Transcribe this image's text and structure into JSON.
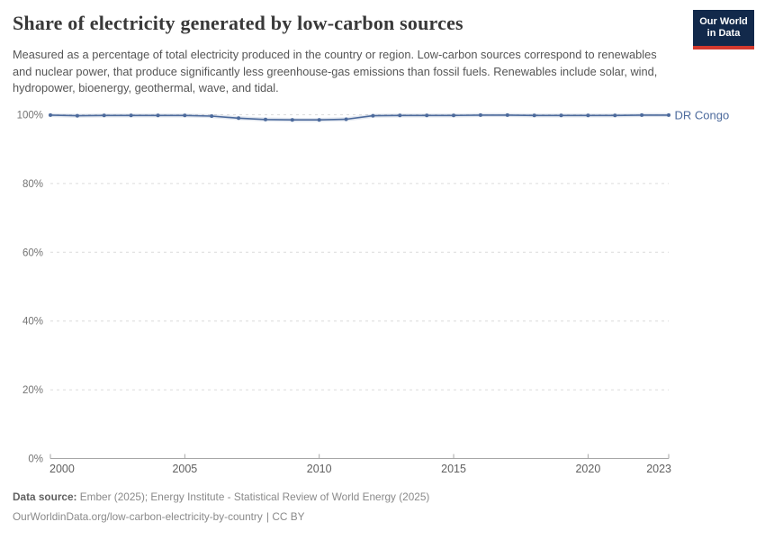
{
  "header": {
    "title": "Share of electricity generated by low-carbon sources",
    "subtitle": "Measured as a percentage of total electricity produced in the country or region. Low-carbon sources correspond to renewables and nuclear power, that produce significantly less greenhouse-gas emissions than fossil fuels. Renewables include solar, wind, hydropower, bioenergy, geothermal, wave, and tidal.",
    "logo_line1": "Our World",
    "logo_line2": "in Data"
  },
  "colors": {
    "series_blue": "#4c6a9c",
    "gridline": "#dcdcdc",
    "axis": "#a6a6a6",
    "y_tick_label": "#747474",
    "x_tick_label": "#606060",
    "logo_navy": "#12294b",
    "logo_red": "#d3392e",
    "title_text": "#383838",
    "subtitle_text": "#555555"
  },
  "chart_data": {
    "type": "line",
    "title": "Share of electricity generated by low-carbon sources",
    "xlabel": "",
    "ylabel": "",
    "xlim": [
      2000,
      2023
    ],
    "ylim": [
      0,
      100
    ],
    "grid": "dashed-horizontal",
    "legend": "inline-end-label",
    "x_ticks": {
      "values": [
        2000,
        2005,
        2010,
        2015,
        2020,
        2023
      ],
      "labels": [
        "2000",
        "2005",
        "2010",
        "2015",
        "2020",
        "2023"
      ]
    },
    "y_ticks": {
      "values": [
        0,
        20,
        40,
        60,
        80,
        100
      ],
      "labels": [
        "0%",
        "20%",
        "40%",
        "60%",
        "80%",
        "100%"
      ]
    },
    "series": [
      {
        "name": "DR Congo",
        "color": "#4c6a9c",
        "x": [
          2000,
          2001,
          2002,
          2003,
          2004,
          2005,
          2006,
          2007,
          2008,
          2009,
          2010,
          2011,
          2012,
          2013,
          2014,
          2015,
          2016,
          2017,
          2018,
          2019,
          2020,
          2021,
          2022,
          2023
        ],
        "values": [
          99.9,
          99.7,
          99.8,
          99.8,
          99.8,
          99.8,
          99.6,
          99.0,
          98.6,
          98.5,
          98.5,
          98.7,
          99.7,
          99.8,
          99.8,
          99.8,
          99.9,
          99.9,
          99.8,
          99.8,
          99.8,
          99.8,
          99.9,
          99.9
        ]
      }
    ]
  },
  "footer": {
    "source_prefix": "Data source:",
    "source_text": "Ember (2025); Energy Institute - Statistical Review of World Energy (2025)",
    "link": "OurWorldinData.org/low-carbon-electricity-by-country",
    "license_suffix": "| CC BY"
  }
}
